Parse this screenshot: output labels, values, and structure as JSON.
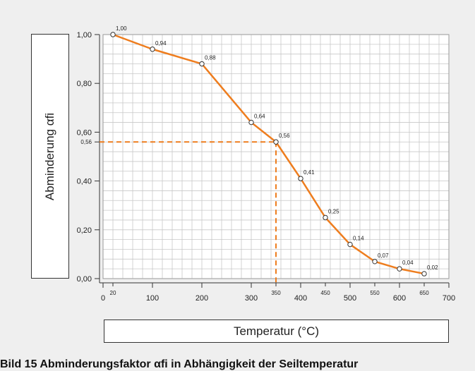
{
  "chart_data": {
    "type": "line",
    "xlabel": "Temperatur (°C)",
    "ylabel": "Abminderung αfi",
    "caption": "Bild 15  Abminderungsfaktor αfi in Abhängigkeit der Seiltemperatur",
    "x": [
      20,
      100,
      200,
      300,
      350,
      400,
      450,
      500,
      550,
      600,
      650
    ],
    "y": [
      1.0,
      0.94,
      0.88,
      0.64,
      0.56,
      0.41,
      0.25,
      0.14,
      0.07,
      0.04,
      0.02
    ],
    "point_labels": [
      "1,00",
      "0,94",
      "0,88",
      "0,64",
      "0,56",
      "0,41",
      "0,25",
      "0,14",
      "0,07",
      "0,04",
      "0,02"
    ],
    "xlim": [
      0,
      700
    ],
    "ylim": [
      0,
      1.0
    ],
    "x_ticks_major": [
      {
        "value": 0,
        "label": "0"
      },
      {
        "value": 100,
        "label": "100"
      },
      {
        "value": 200,
        "label": "200"
      },
      {
        "value": 300,
        "label": "300"
      },
      {
        "value": 400,
        "label": "400"
      },
      {
        "value": 500,
        "label": "500"
      },
      {
        "value": 600,
        "label": "600"
      },
      {
        "value": 700,
        "label": "700"
      }
    ],
    "x_ticks_minor": [
      {
        "value": 20,
        "label": "20"
      },
      {
        "value": 350,
        "label": "350"
      },
      {
        "value": 450,
        "label": "450"
      },
      {
        "value": 550,
        "label": "550"
      },
      {
        "value": 650,
        "label": "650"
      }
    ],
    "y_ticks": [
      {
        "value": 0.0,
        "label": "0,00"
      },
      {
        "value": 0.2,
        "label": "0,20"
      },
      {
        "value": 0.4,
        "label": "0,40"
      },
      {
        "value": 0.6,
        "label": "0,60"
      },
      {
        "value": 0.8,
        "label": "0,80"
      },
      {
        "value": 1.0,
        "label": "1,00"
      }
    ],
    "reference": {
      "x": 350,
      "y": 0.56,
      "label": "0,56"
    },
    "grid": true,
    "line_color": "#ee7d1e"
  }
}
